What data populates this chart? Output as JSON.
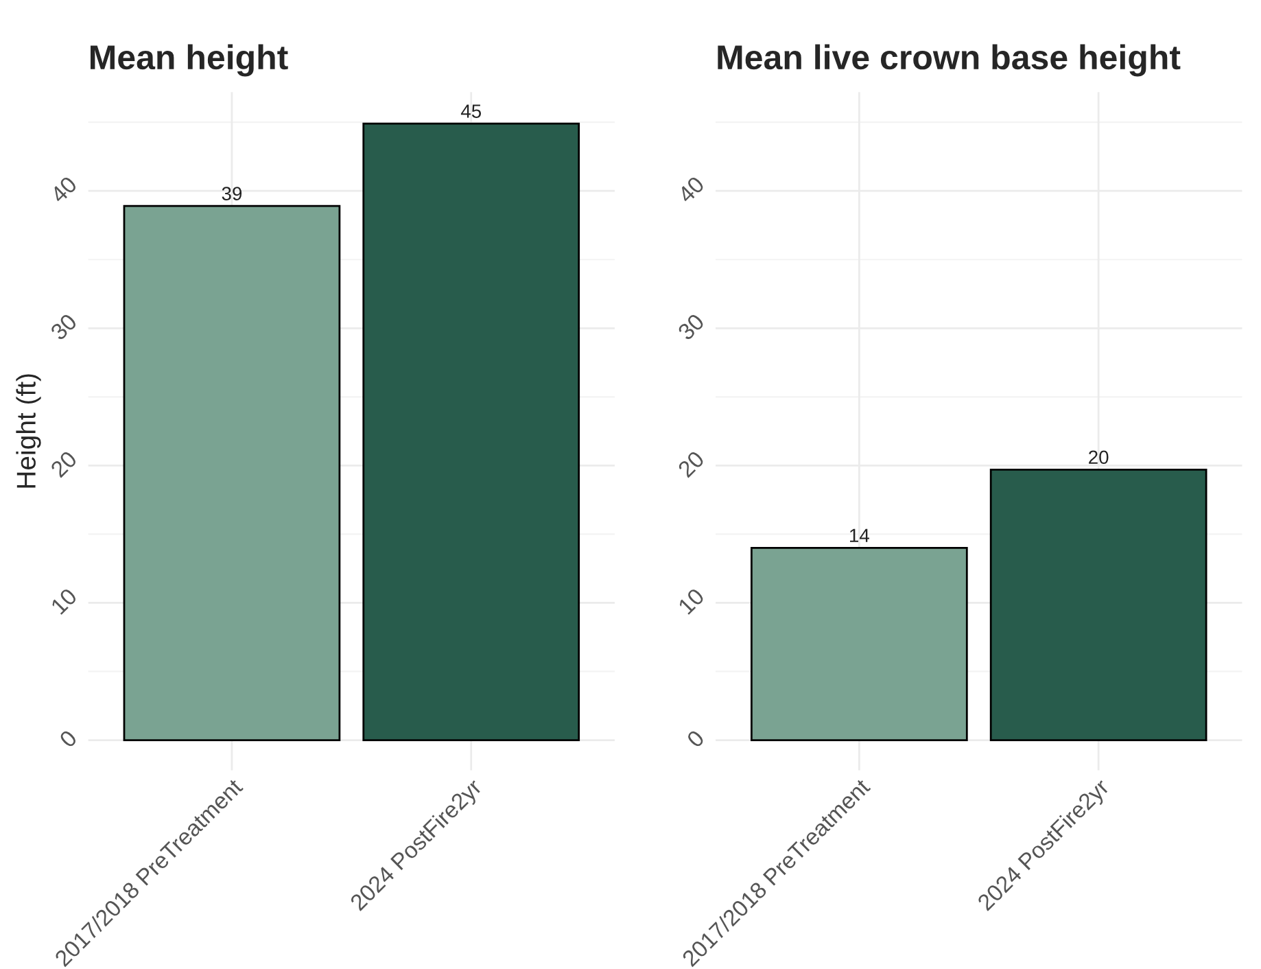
{
  "chart_data": [
    {
      "type": "bar",
      "title": "Mean height",
      "ylabel": "Height (ft)",
      "categories": [
        "2017/2018 PreTreatment",
        "2024 PostFire2yr"
      ],
      "values": [
        38.9,
        44.9
      ],
      "colors": [
        "#7aa392",
        "#285c4c"
      ],
      "value_labels": [
        "39",
        "45"
      ],
      "ylim": [
        -2.2,
        47.2
      ],
      "yticks": [
        0,
        10,
        20,
        30,
        40
      ],
      "grid": true
    },
    {
      "type": "bar",
      "title": "Mean live crown base height",
      "categories": [
        "2017/2018 PreTreatment",
        "2024 PostFire2yr"
      ],
      "values": [
        14.0,
        19.7
      ],
      "colors": [
        "#7aa392",
        "#285c4c"
      ],
      "value_labels": [
        "14",
        "20"
      ],
      "ylim": [
        -2.2,
        47.2
      ],
      "yticks": [
        0,
        10,
        20,
        30,
        40
      ],
      "grid": true
    }
  ]
}
